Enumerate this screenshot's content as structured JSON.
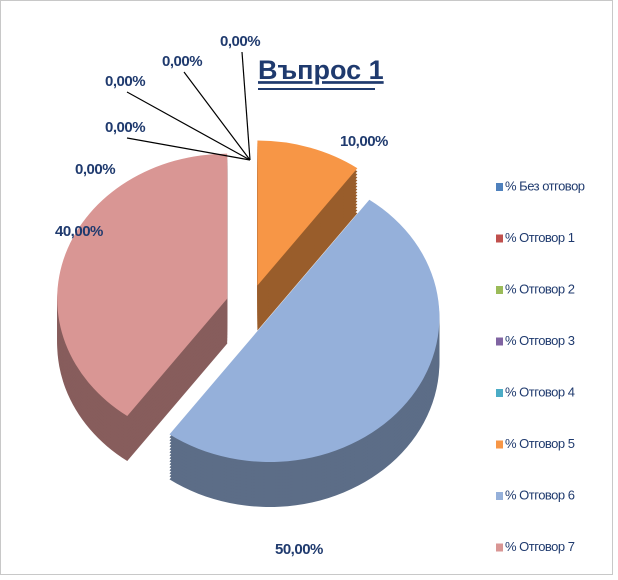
{
  "chart_data": {
    "type": "pie",
    "title": "Въпрос 1",
    "categories": [
      "% Без отговор",
      "% Отговор 1",
      "% Отговор 2",
      "% Отговор 3",
      "% Отговор 4",
      "% Отговор 5",
      "% Отговор 6",
      "% Отговор 7"
    ],
    "values": [
      0,
      0,
      0,
      0,
      0,
      10,
      50,
      40
    ],
    "value_labels": [
      "0,00%",
      "0,00%",
      "0,00%",
      "0,00%",
      "0,00%",
      "10,00%",
      "50,00%",
      "40,00%"
    ],
    "colors": [
      "#4f81bd",
      "#c0504d",
      "#9bbb59",
      "#8064a2",
      "#4bacc6",
      "#f79646",
      "#95b0da",
      "#d99694"
    ],
    "legend": "right"
  }
}
